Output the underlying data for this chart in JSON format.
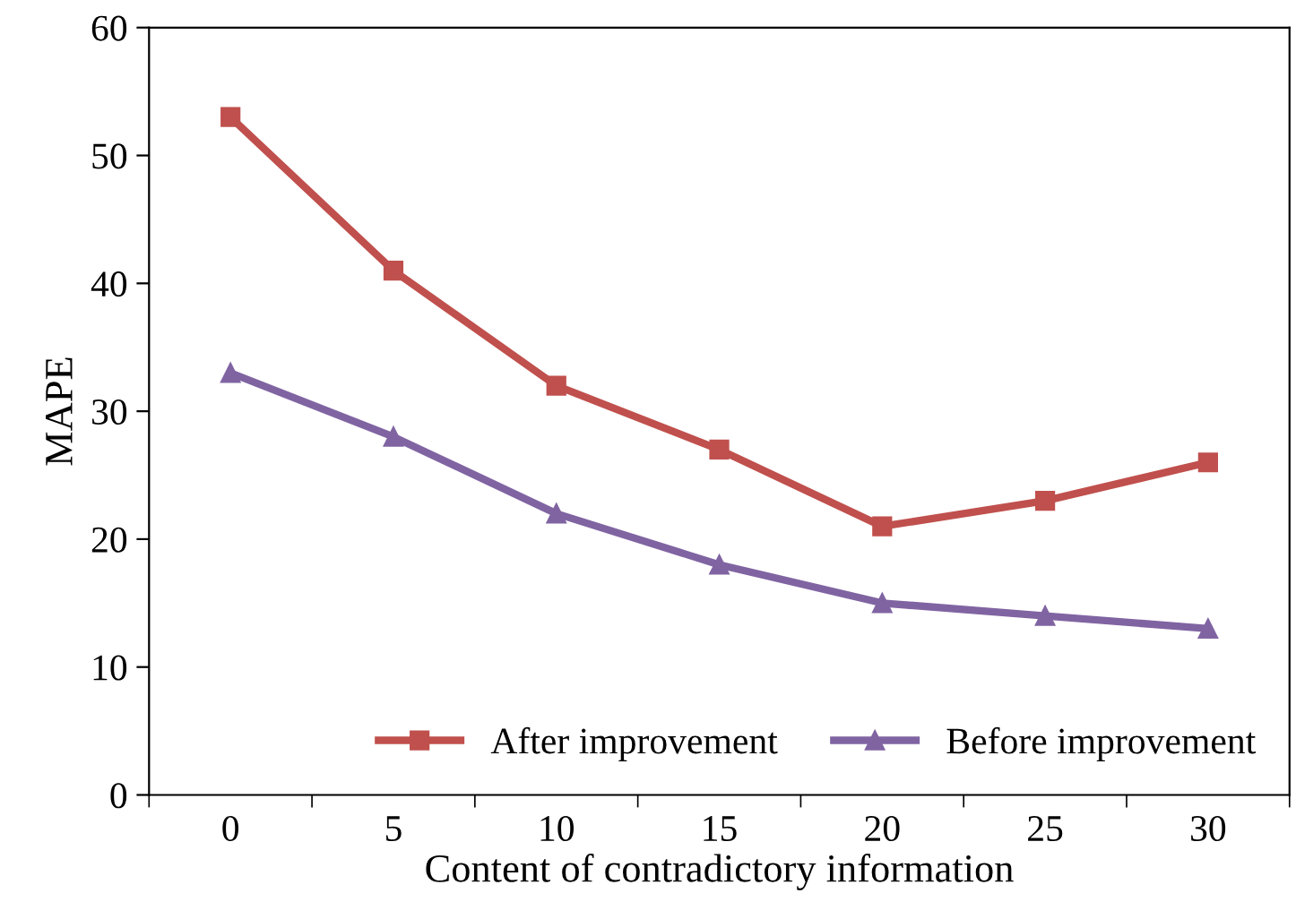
{
  "chart_data": {
    "type": "line",
    "xlabel": "Content of contradictory information",
    "ylabel": "MAPE",
    "categories": [
      "0",
      "5",
      "10",
      "15",
      "20",
      "25",
      "30"
    ],
    "series": [
      {
        "name": "After improvement",
        "color": "#c0504d",
        "marker": "square",
        "values": [
          53,
          41,
          32,
          27,
          21,
          23,
          26
        ]
      },
      {
        "name": "Before improvement",
        "color": "#8064a2",
        "marker": "triangle",
        "values": [
          33,
          28,
          22,
          18,
          15,
          14,
          13
        ]
      }
    ],
    "ylim": [
      0,
      60
    ],
    "yticks": [
      0,
      10,
      20,
      30,
      40,
      50,
      60
    ],
    "grid": false,
    "legend": "bottom right",
    "line_style": "solid"
  }
}
